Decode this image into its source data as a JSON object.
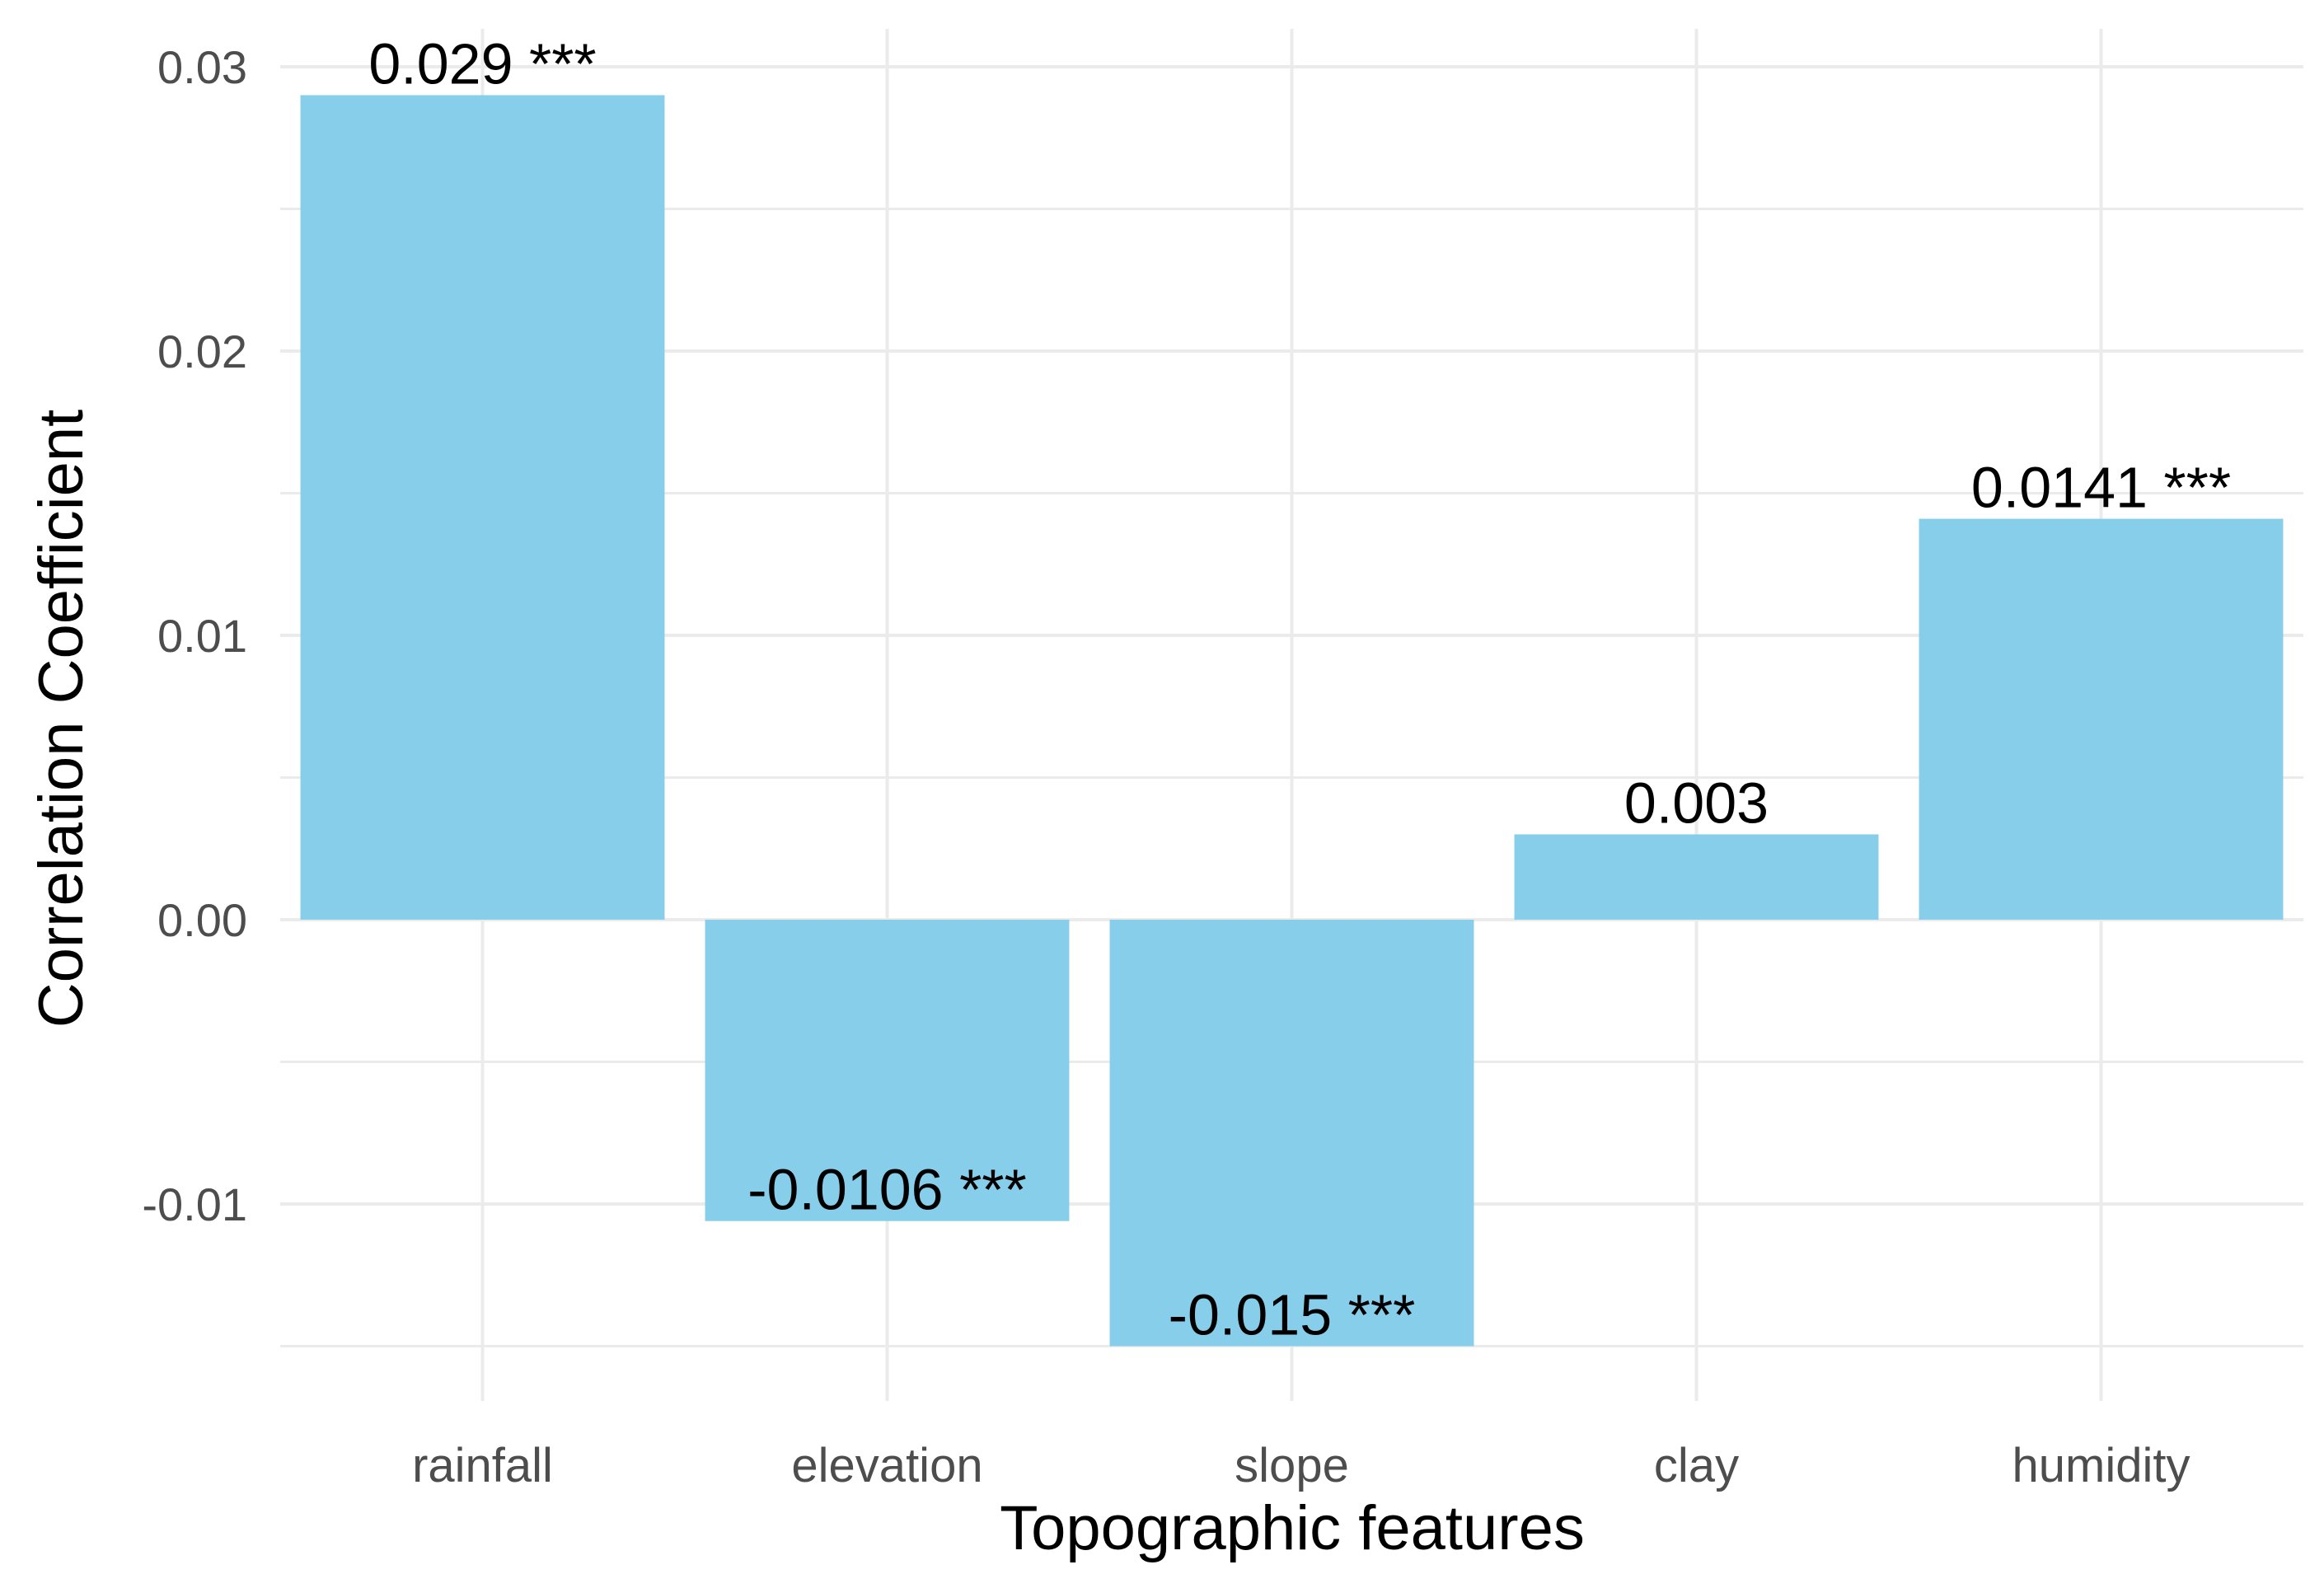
{
  "chart_data": {
    "type": "bar",
    "categories": [
      "rainfall",
      "elevation",
      "slope",
      "clay",
      "humidity"
    ],
    "values": [
      0.029,
      -0.0106,
      -0.015,
      0.003,
      0.0141
    ],
    "data_labels": [
      "0.029 ***",
      "-0.0106 ***",
      "-0.015 ***",
      "0.003",
      "0.0141 ***"
    ],
    "title": "",
    "xlabel": "Topographic features",
    "ylabel": "Correlation Coefficient",
    "ylim": [
      -0.0166,
      0.0315
    ],
    "yticks": [
      -0.01,
      0.0,
      0.01,
      0.02,
      0.03
    ],
    "ytick_labels": [
      "-0.01",
      "0.00",
      "0.01",
      "0.02",
      "0.03"
    ],
    "grid": true,
    "legend": "none",
    "bar_color": "#87CEEB"
  }
}
